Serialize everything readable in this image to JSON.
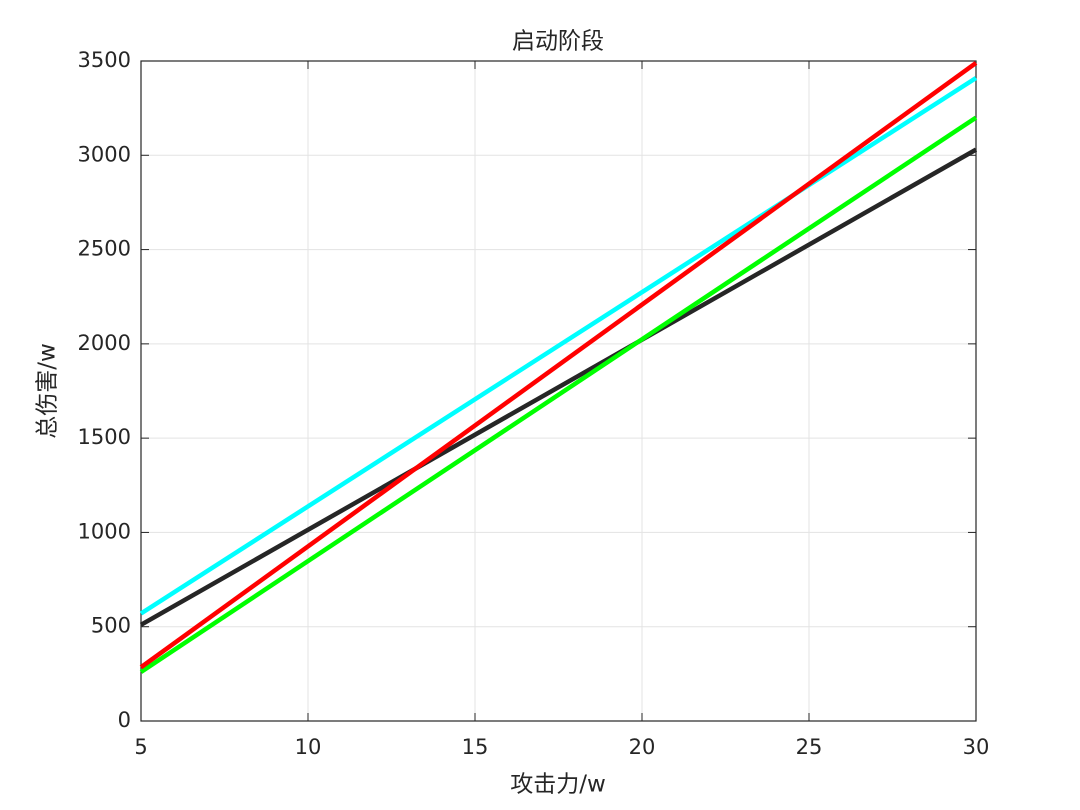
{
  "chart_data": {
    "type": "line",
    "title": "启动阶段",
    "x_label": "攻击力/w",
    "y_label": "总伤害/w",
    "x": [
      5,
      30
    ],
    "series": [
      {
        "color": "#00ffff",
        "values": [
          570,
          3410
        ]
      },
      {
        "color": "#262626",
        "values": [
          510,
          3030
        ]
      },
      {
        "color": "#00ff00",
        "values": [
          260,
          3200
        ]
      },
      {
        "color": "#ff0000",
        "values": [
          285,
          3490
        ]
      }
    ],
    "xlim": [
      5,
      30
    ],
    "xticks": [
      5,
      10,
      15,
      20,
      25,
      30
    ],
    "ylim": [
      0,
      3500
    ],
    "yticks": [
      0,
      500,
      1000,
      1500,
      2000,
      2500,
      3000,
      3500
    ],
    "grid": true
  }
}
